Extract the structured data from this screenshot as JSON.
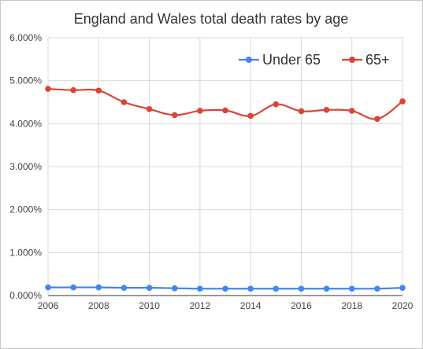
{
  "chart_data": {
    "type": "line",
    "title": "England and Wales total death rates by age",
    "xlabel": "",
    "ylabel": "",
    "x": [
      2006,
      2007,
      2008,
      2009,
      2010,
      2011,
      2012,
      2013,
      2014,
      2015,
      2016,
      2017,
      2018,
      2019,
      2020
    ],
    "x_ticks": [
      "2006",
      "2008",
      "2010",
      "2012",
      "2014",
      "2016",
      "2018",
      "2020"
    ],
    "x_tick_values": [
      2006,
      2008,
      2010,
      2012,
      2014,
      2016,
      2018,
      2020
    ],
    "y_ticks": [
      "0.000%",
      "1.000%",
      "2.000%",
      "3.000%",
      "4.000%",
      "5.000%",
      "6.000%"
    ],
    "y_tick_values": [
      0,
      1,
      2,
      3,
      4,
      5,
      6
    ],
    "xlim": [
      2006,
      2020
    ],
    "ylim": [
      0,
      6
    ],
    "grid": true,
    "legend_position": "top-right",
    "series": [
      {
        "name": "Under 65",
        "color": "#4285f4",
        "values": [
          0.19,
          0.19,
          0.19,
          0.18,
          0.18,
          0.17,
          0.16,
          0.16,
          0.16,
          0.16,
          0.16,
          0.16,
          0.16,
          0.16,
          0.18
        ]
      },
      {
        "name": "65+",
        "color": "#db4437",
        "values": [
          4.81,
          4.78,
          4.77,
          4.5,
          4.34,
          4.2,
          4.3,
          4.31,
          4.18,
          4.45,
          4.29,
          4.32,
          4.3,
          4.11,
          4.52
        ]
      }
    ]
  }
}
